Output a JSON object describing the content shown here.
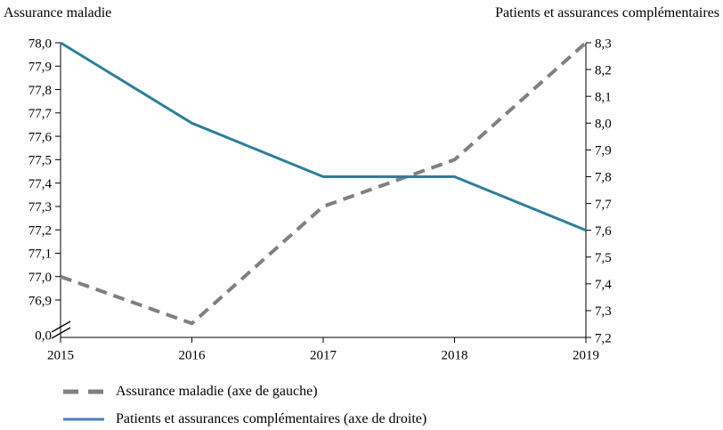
{
  "titles": {
    "left": "Assurance maladie",
    "right": "Patients et assurances complémentaires"
  },
  "chart_data": {
    "type": "line",
    "x": [
      "2015",
      "2016",
      "2017",
      "2018",
      "2019"
    ],
    "series": [
      {
        "name": "Assurance maladie (axe de gauche)",
        "axis": "left",
        "values": [
          77.0,
          76.8,
          77.3,
          77.5,
          78.0
        ],
        "color": "#808080",
        "line_style": "dashed",
        "line_width": 4
      },
      {
        "name": "Patients et assurances complémentaires (axe de droite)",
        "axis": "right",
        "values": [
          8.3,
          8.0,
          7.8,
          7.8,
          7.6
        ],
        "color": "#2E7F99",
        "line_style": "solid",
        "line_width": 3
      }
    ],
    "left_axis": {
      "title": "Assurance maladie",
      "tick_labels": [
        "78,0",
        "77,9",
        "77,8",
        "77,7",
        "77,6",
        "77,5",
        "77,4",
        "77,3",
        "77,2",
        "77,1",
        "77,0",
        "76,9"
      ],
      "range": [
        76.9,
        78.0
      ],
      "axis_break": true,
      "break_label": "0,0"
    },
    "right_axis": {
      "title": "Patients et assurances complémentaires",
      "tick_labels": [
        "8,3",
        "8,2",
        "8,1",
        "8,0",
        "7,9",
        "7,8",
        "7,7",
        "7,6",
        "7,5",
        "7,4",
        "7,3",
        "7,2"
      ],
      "range": [
        7.2,
        8.3
      ]
    },
    "grid": false,
    "legend_position": "bottom-left",
    "axis_color": "#000000"
  },
  "legend": {
    "items": [
      {
        "label": "Assurance maladie (axe de gauche)",
        "swatch": "dashed",
        "color": "#808080"
      },
      {
        "label": "Patients et assurances complémentaires (axe de droite)",
        "swatch": "solid",
        "color": "#4A7EBB"
      }
    ]
  }
}
